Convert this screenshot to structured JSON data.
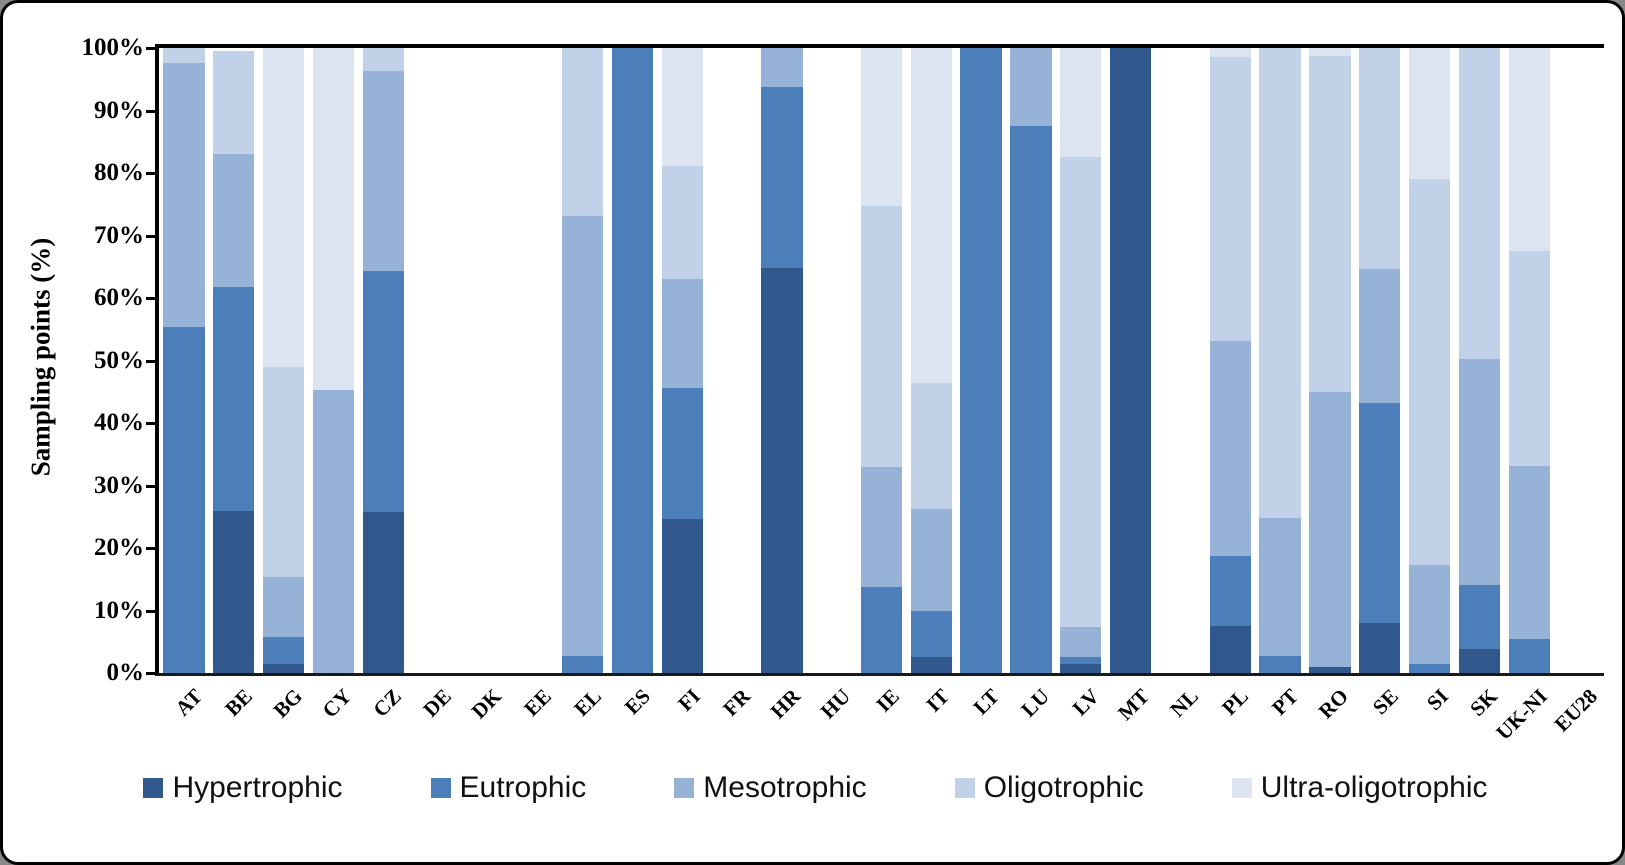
{
  "chart_data": {
    "type": "bar",
    "subtype": "stacked-100-percent",
    "title": "",
    "ylabel": "Sampling points (%)",
    "xlabel": "",
    "ylim": [
      0,
      100
    ],
    "grid": false,
    "legend_position": "bottom",
    "yticks": [
      "100%",
      "90%",
      "80%",
      "70%",
      "60%",
      "50%",
      "40%",
      "30%",
      "20%",
      "10%",
      "0%"
    ],
    "categories": [
      "AT",
      "BE",
      "BG",
      "CY",
      "CZ",
      "DE",
      "DK",
      "EE",
      "EL",
      "ES",
      "FI",
      "FR",
      "HR",
      "HU",
      "IE",
      "IT",
      "LT",
      "LU",
      "LV",
      "MT",
      "NL",
      "PL",
      "PT",
      "RO",
      "SE",
      "SI",
      "SK",
      "UK-NI",
      "EU28"
    ],
    "series": [
      {
        "name": "Hypertrophic",
        "color": "#31588D",
        "values": [
          0,
          25.9,
          1.4,
          0,
          25.8,
          0,
          0,
          0,
          0,
          0,
          24.7,
          0,
          64.8,
          0,
          0,
          2.5,
          0,
          0,
          1.5,
          100,
          0,
          7.6,
          0,
          1.0,
          8.0,
          0,
          3.8,
          0,
          0
        ]
      },
      {
        "name": "Eutrophic",
        "color": "#4C7EBA",
        "values": [
          55.3,
          35.8,
          4.3,
          0,
          38.6,
          0,
          0,
          0,
          2.7,
          100,
          20.9,
          0,
          28.9,
          0,
          13.7,
          7.5,
          100,
          87.5,
          1.0,
          0,
          0,
          11.2,
          2.7,
          0,
          35.2,
          1.4,
          10.3,
          5.4,
          0
        ]
      },
      {
        "name": "Mesotrophic",
        "color": "#96B2D6",
        "values": [
          42.3,
          21.4,
          9.7,
          45.3,
          31.9,
          0,
          0,
          0,
          70.5,
          0,
          17.4,
          0,
          6.3,
          0,
          19.3,
          16.3,
          0,
          12.5,
          4.9,
          0,
          0,
          34.4,
          22.1,
          44.0,
          21.4,
          15.9,
          36.1,
          27.8,
          0
        ]
      },
      {
        "name": "Oligotrophic",
        "color": "#C0D1E8",
        "values": [
          2.4,
          16.4,
          33.5,
          0,
          3.7,
          0,
          0,
          0,
          26.8,
          0,
          18.2,
          0,
          0,
          0,
          41.8,
          20.1,
          0,
          0,
          75.2,
          0,
          0,
          45.3,
          75.2,
          53.8,
          35.4,
          61.8,
          49.8,
          34.4,
          0
        ]
      },
      {
        "name": "Ultra-oligotrophic",
        "color": "#DCE4F1",
        "values": [
          0,
          0,
          51.1,
          54.7,
          0,
          0,
          0,
          0,
          0,
          0,
          18.8,
          0,
          0,
          0,
          25.2,
          53.6,
          0,
          0,
          17.4,
          0,
          0,
          1.5,
          0,
          1.2,
          0,
          20.9,
          0,
          32.4,
          0
        ]
      }
    ]
  }
}
